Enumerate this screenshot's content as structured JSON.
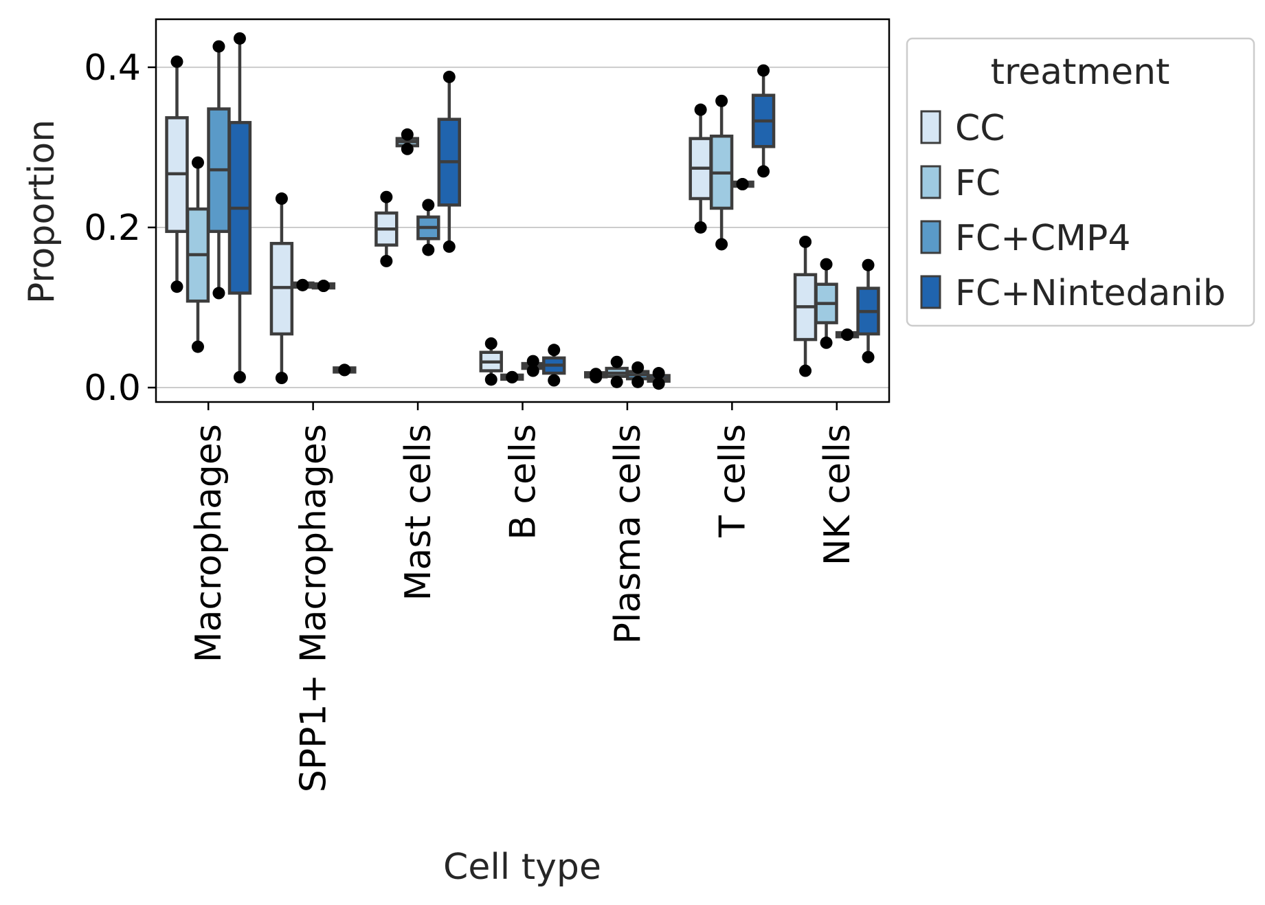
{
  "chart_data": {
    "type": "box",
    "title": "",
    "xlabel": "Cell type",
    "ylabel": "Proportion",
    "ylim": [
      -0.018,
      0.46
    ],
    "yticks": [
      0.0,
      0.2,
      0.4
    ],
    "ytick_labels": [
      "0.0",
      "0.2",
      "0.4"
    ],
    "grid": "horizontal",
    "categories": [
      "Macrophages",
      "SPP1+ Macrophages",
      "Mast cells",
      "B cells",
      "Plasma cells",
      "T cells",
      "NK cells"
    ],
    "legend": {
      "title": "treatment",
      "placement": "outside-right",
      "entries": [
        "CC",
        "FC",
        "FC+CMP4",
        "FC+Nintedanib"
      ]
    },
    "series": [
      {
        "name": "CC",
        "color": "#d6e6f4",
        "boxes": [
          {
            "whislo": 0.126,
            "q1": 0.195,
            "med": 0.267,
            "q3": 0.337,
            "whishi": 0.407,
            "points": [
              0.407,
              0.126
            ]
          },
          {
            "whislo": 0.012,
            "q1": 0.067,
            "med": 0.125,
            "q3": 0.18,
            "whishi": 0.236,
            "points": [
              0.236,
              0.012
            ]
          },
          {
            "whislo": 0.158,
            "q1": 0.178,
            "med": 0.198,
            "q3": 0.218,
            "whishi": 0.238,
            "points": [
              0.238,
              0.158
            ]
          },
          {
            "whislo": 0.01,
            "q1": 0.021,
            "med": 0.032,
            "q3": 0.044,
            "whishi": 0.055,
            "points": [
              0.055,
              0.01
            ]
          },
          {
            "whislo": 0.013,
            "q1": 0.014,
            "med": 0.015,
            "q3": 0.016,
            "whishi": 0.017,
            "points": [
              0.017,
              0.013
            ]
          },
          {
            "whislo": 0.2,
            "q1": 0.236,
            "med": 0.274,
            "q3": 0.311,
            "whishi": 0.347,
            "points": [
              0.347,
              0.2
            ]
          },
          {
            "whislo": 0.021,
            "q1": 0.06,
            "med": 0.101,
            "q3": 0.141,
            "whishi": 0.182,
            "points": [
              0.182,
              0.021
            ]
          }
        ]
      },
      {
        "name": "FC",
        "color": "#9ecae1",
        "boxes": [
          {
            "whislo": 0.051,
            "q1": 0.108,
            "med": 0.166,
            "q3": 0.223,
            "whishi": 0.281,
            "points": [
              0.281,
              0.051
            ]
          },
          {
            "whislo": 0.128,
            "q1": 0.128,
            "med": 0.128,
            "q3": 0.128,
            "whishi": 0.128,
            "points": [
              0.128,
              0.128
            ]
          },
          {
            "whislo": 0.298,
            "q1": 0.302,
            "med": 0.307,
            "q3": 0.311,
            "whishi": 0.316,
            "points": [
              0.316,
              0.298
            ]
          },
          {
            "whislo": 0.013,
            "q1": 0.013,
            "med": 0.013,
            "q3": 0.013,
            "whishi": 0.013,
            "points": [
              0.013,
              0.013
            ]
          },
          {
            "whislo": 0.007,
            "q1": 0.014,
            "med": 0.018,
            "q3": 0.024,
            "whishi": 0.032,
            "points": [
              0.032,
              0.007
            ]
          },
          {
            "whislo": 0.179,
            "q1": 0.224,
            "med": 0.268,
            "q3": 0.314,
            "whishi": 0.358,
            "points": [
              0.358,
              0.179
            ]
          },
          {
            "whislo": 0.056,
            "q1": 0.081,
            "med": 0.105,
            "q3": 0.129,
            "whishi": 0.154,
            "points": [
              0.154,
              0.056
            ]
          }
        ]
      },
      {
        "name": "FC+CMP4",
        "color": "#5a9ac8",
        "boxes": [
          {
            "whislo": 0.118,
            "q1": 0.195,
            "med": 0.272,
            "q3": 0.348,
            "whishi": 0.426,
            "points": [
              0.426,
              0.118
            ]
          },
          {
            "whislo": 0.127,
            "q1": 0.127,
            "med": 0.127,
            "q3": 0.127,
            "whishi": 0.127,
            "points": [
              0.127,
              0.127
            ]
          },
          {
            "whislo": 0.172,
            "q1": 0.186,
            "med": 0.2,
            "q3": 0.213,
            "whishi": 0.228,
            "points": [
              0.228,
              0.172
            ]
          },
          {
            "whislo": 0.021,
            "q1": 0.024,
            "med": 0.027,
            "q3": 0.03,
            "whishi": 0.033,
            "points": [
              0.033,
              0.021
            ]
          },
          {
            "whislo": 0.007,
            "q1": 0.011,
            "med": 0.016,
            "q3": 0.02,
            "whishi": 0.025,
            "points": [
              0.025,
              0.007
            ]
          },
          {
            "whislo": 0.254,
            "q1": 0.254,
            "med": 0.254,
            "q3": 0.254,
            "whishi": 0.254,
            "points": [
              0.254,
              0.254
            ]
          },
          {
            "whislo": 0.066,
            "q1": 0.066,
            "med": 0.066,
            "q3": 0.066,
            "whishi": 0.066,
            "points": [
              0.066,
              0.066
            ]
          }
        ]
      },
      {
        "name": "FC+Nintedanib",
        "color": "#2064ae",
        "boxes": [
          {
            "whislo": 0.013,
            "q1": 0.118,
            "med": 0.224,
            "q3": 0.331,
            "whishi": 0.436,
            "points": [
              0.436,
              0.013
            ]
          },
          {
            "whislo": 0.022,
            "q1": 0.022,
            "med": 0.022,
            "q3": 0.022,
            "whishi": 0.022,
            "points": [
              0.022,
              0.022
            ]
          },
          {
            "whislo": 0.176,
            "q1": 0.228,
            "med": 0.282,
            "q3": 0.335,
            "whishi": 0.388,
            "points": [
              0.388,
              0.176
            ]
          },
          {
            "whislo": 0.009,
            "q1": 0.018,
            "med": 0.028,
            "q3": 0.037,
            "whishi": 0.047,
            "points": [
              0.047,
              0.009
            ]
          },
          {
            "whislo": 0.005,
            "q1": 0.008,
            "med": 0.011,
            "q3": 0.015,
            "whishi": 0.018,
            "points": [
              0.018,
              0.005
            ]
          },
          {
            "whislo": 0.27,
            "q1": 0.301,
            "med": 0.333,
            "q3": 0.365,
            "whishi": 0.396,
            "points": [
              0.396,
              0.27
            ]
          },
          {
            "whislo": 0.038,
            "q1": 0.067,
            "med": 0.095,
            "q3": 0.124,
            "whishi": 0.153,
            "points": [
              0.153,
              0.038
            ]
          }
        ]
      }
    ]
  }
}
